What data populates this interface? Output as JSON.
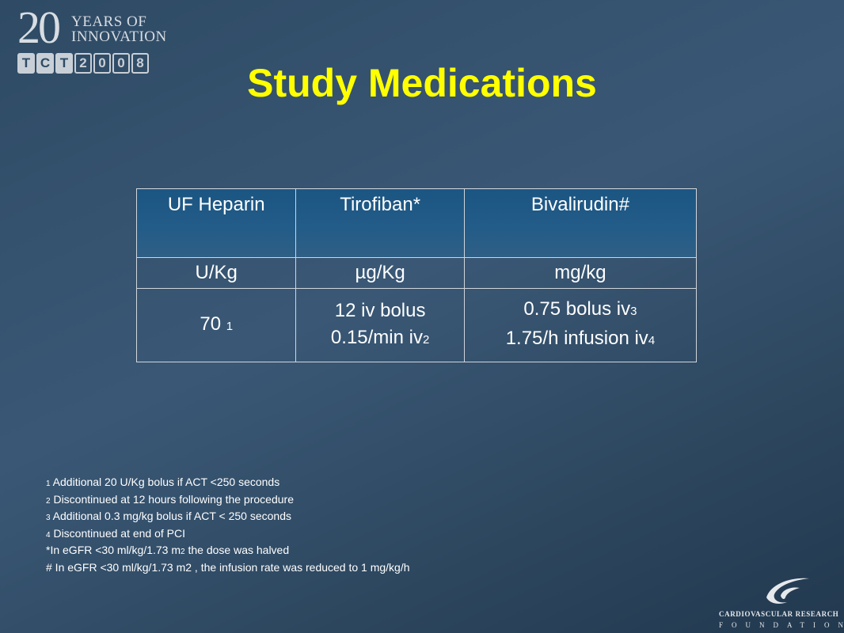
{
  "logo": {
    "years_number": "20",
    "years_line1": "YEARS OF",
    "years_line2": "INNOVATION",
    "tct_letters": [
      "T",
      "C",
      "T",
      "2",
      "0",
      "0",
      "8"
    ]
  },
  "title": "Study Medications",
  "table": {
    "headers": [
      {
        "text": "UF Heparin",
        "color": "#ffffff"
      },
      {
        "text": "Tirofiban*",
        "color": "#ffff00"
      },
      {
        "text": "Bivalirudin#",
        "color": "#33cc33"
      }
    ],
    "units": [
      "U/Kg",
      "µg/Kg",
      "mg/kg"
    ],
    "col1": {
      "value": "70",
      "note": "1"
    },
    "col2": {
      "line1": "12 iv bolus",
      "line2": "0.15/min iv",
      "line2_note": "2"
    },
    "col3": {
      "line1": "0.75 bolus iv",
      "line1_note": "3",
      "line2": "1.75/h infusion iv",
      "line2_note": "4"
    }
  },
  "footnotes": [
    {
      "num": "1",
      "text": " Additional  20  U/Kg  bolus  if  ACT  <250  seconds"
    },
    {
      "num": "2",
      "text": " Discontinued  at  12  hours  following  the  procedure"
    },
    {
      "num": "3",
      "text": " Additional  0.3  mg/kg  bolus  if  ACT  <  250  seconds"
    },
    {
      "num": "4",
      "text": " Discontinued  at  end  of  PCI"
    }
  ],
  "note_star": {
    "pre": "*In  eGFR  <30  ml/kg/1.73  m",
    "sub": "2",
    "post": "  the  dose  was  halved"
  },
  "note_hash": "#  In  eGFR  <30  ml/kg/1.73  m2  ,  the  infusion  rate  was  reduced  to  1  mg/kg/h",
  "org": {
    "line1": "CARDIOVASCULAR RESEARCH",
    "line2": "FOUNDATION"
  }
}
